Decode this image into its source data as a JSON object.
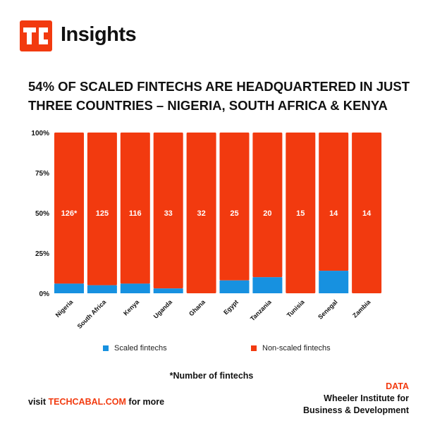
{
  "brand": {
    "logo_text": "TC",
    "name": "Insights"
  },
  "headline": {
    "line1": "54% of scaled fintechs are headquartered in just",
    "line2": "three countries – Nigeria, South Africa & Kenya"
  },
  "colors": {
    "scaled": "#1791e0",
    "non_scaled": "#f23a0f",
    "accent": "#f23a0f"
  },
  "chart_data": {
    "type": "bar",
    "stacked": true,
    "normalized": true,
    "categories": [
      "Nigeria",
      "South Africa",
      "Kenya",
      "Uganda",
      "Ghana",
      "Egypt",
      "Tanzania",
      "Tunisia",
      "Senegal",
      "Zambia"
    ],
    "series": [
      {
        "name": "Scaled fintechs",
        "values": [
          6,
          5,
          6,
          3,
          0,
          8,
          10,
          0,
          14,
          0
        ]
      },
      {
        "name": "Non-scaled fintechs",
        "values": [
          94,
          95,
          94,
          97,
          100,
          92,
          90,
          100,
          86,
          100
        ]
      }
    ],
    "bar_labels": [
      "126*",
      "125",
      "116",
      "33",
      "32",
      "25",
      "20",
      "15",
      "14",
      "14"
    ],
    "ylim": [
      0,
      100
    ],
    "yticks": [
      "0%",
      "25%",
      "50%",
      "75%",
      "100%"
    ],
    "ytick_values": [
      0,
      25,
      50,
      75,
      100
    ],
    "legend_position": "bottom"
  },
  "legend": {
    "scaled_label": "Scaled fintechs",
    "non_scaled_label": "Non-scaled fintechs"
  },
  "footnote": "*Number of fintechs",
  "footer": {
    "visit_prefix": "visit",
    "visit_link": "TECHCABAL.COM",
    "visit_suffix": "for more",
    "source_label": "DATA",
    "source_line1": "Wheeler Institute for",
    "source_line2": "Business & Development"
  }
}
